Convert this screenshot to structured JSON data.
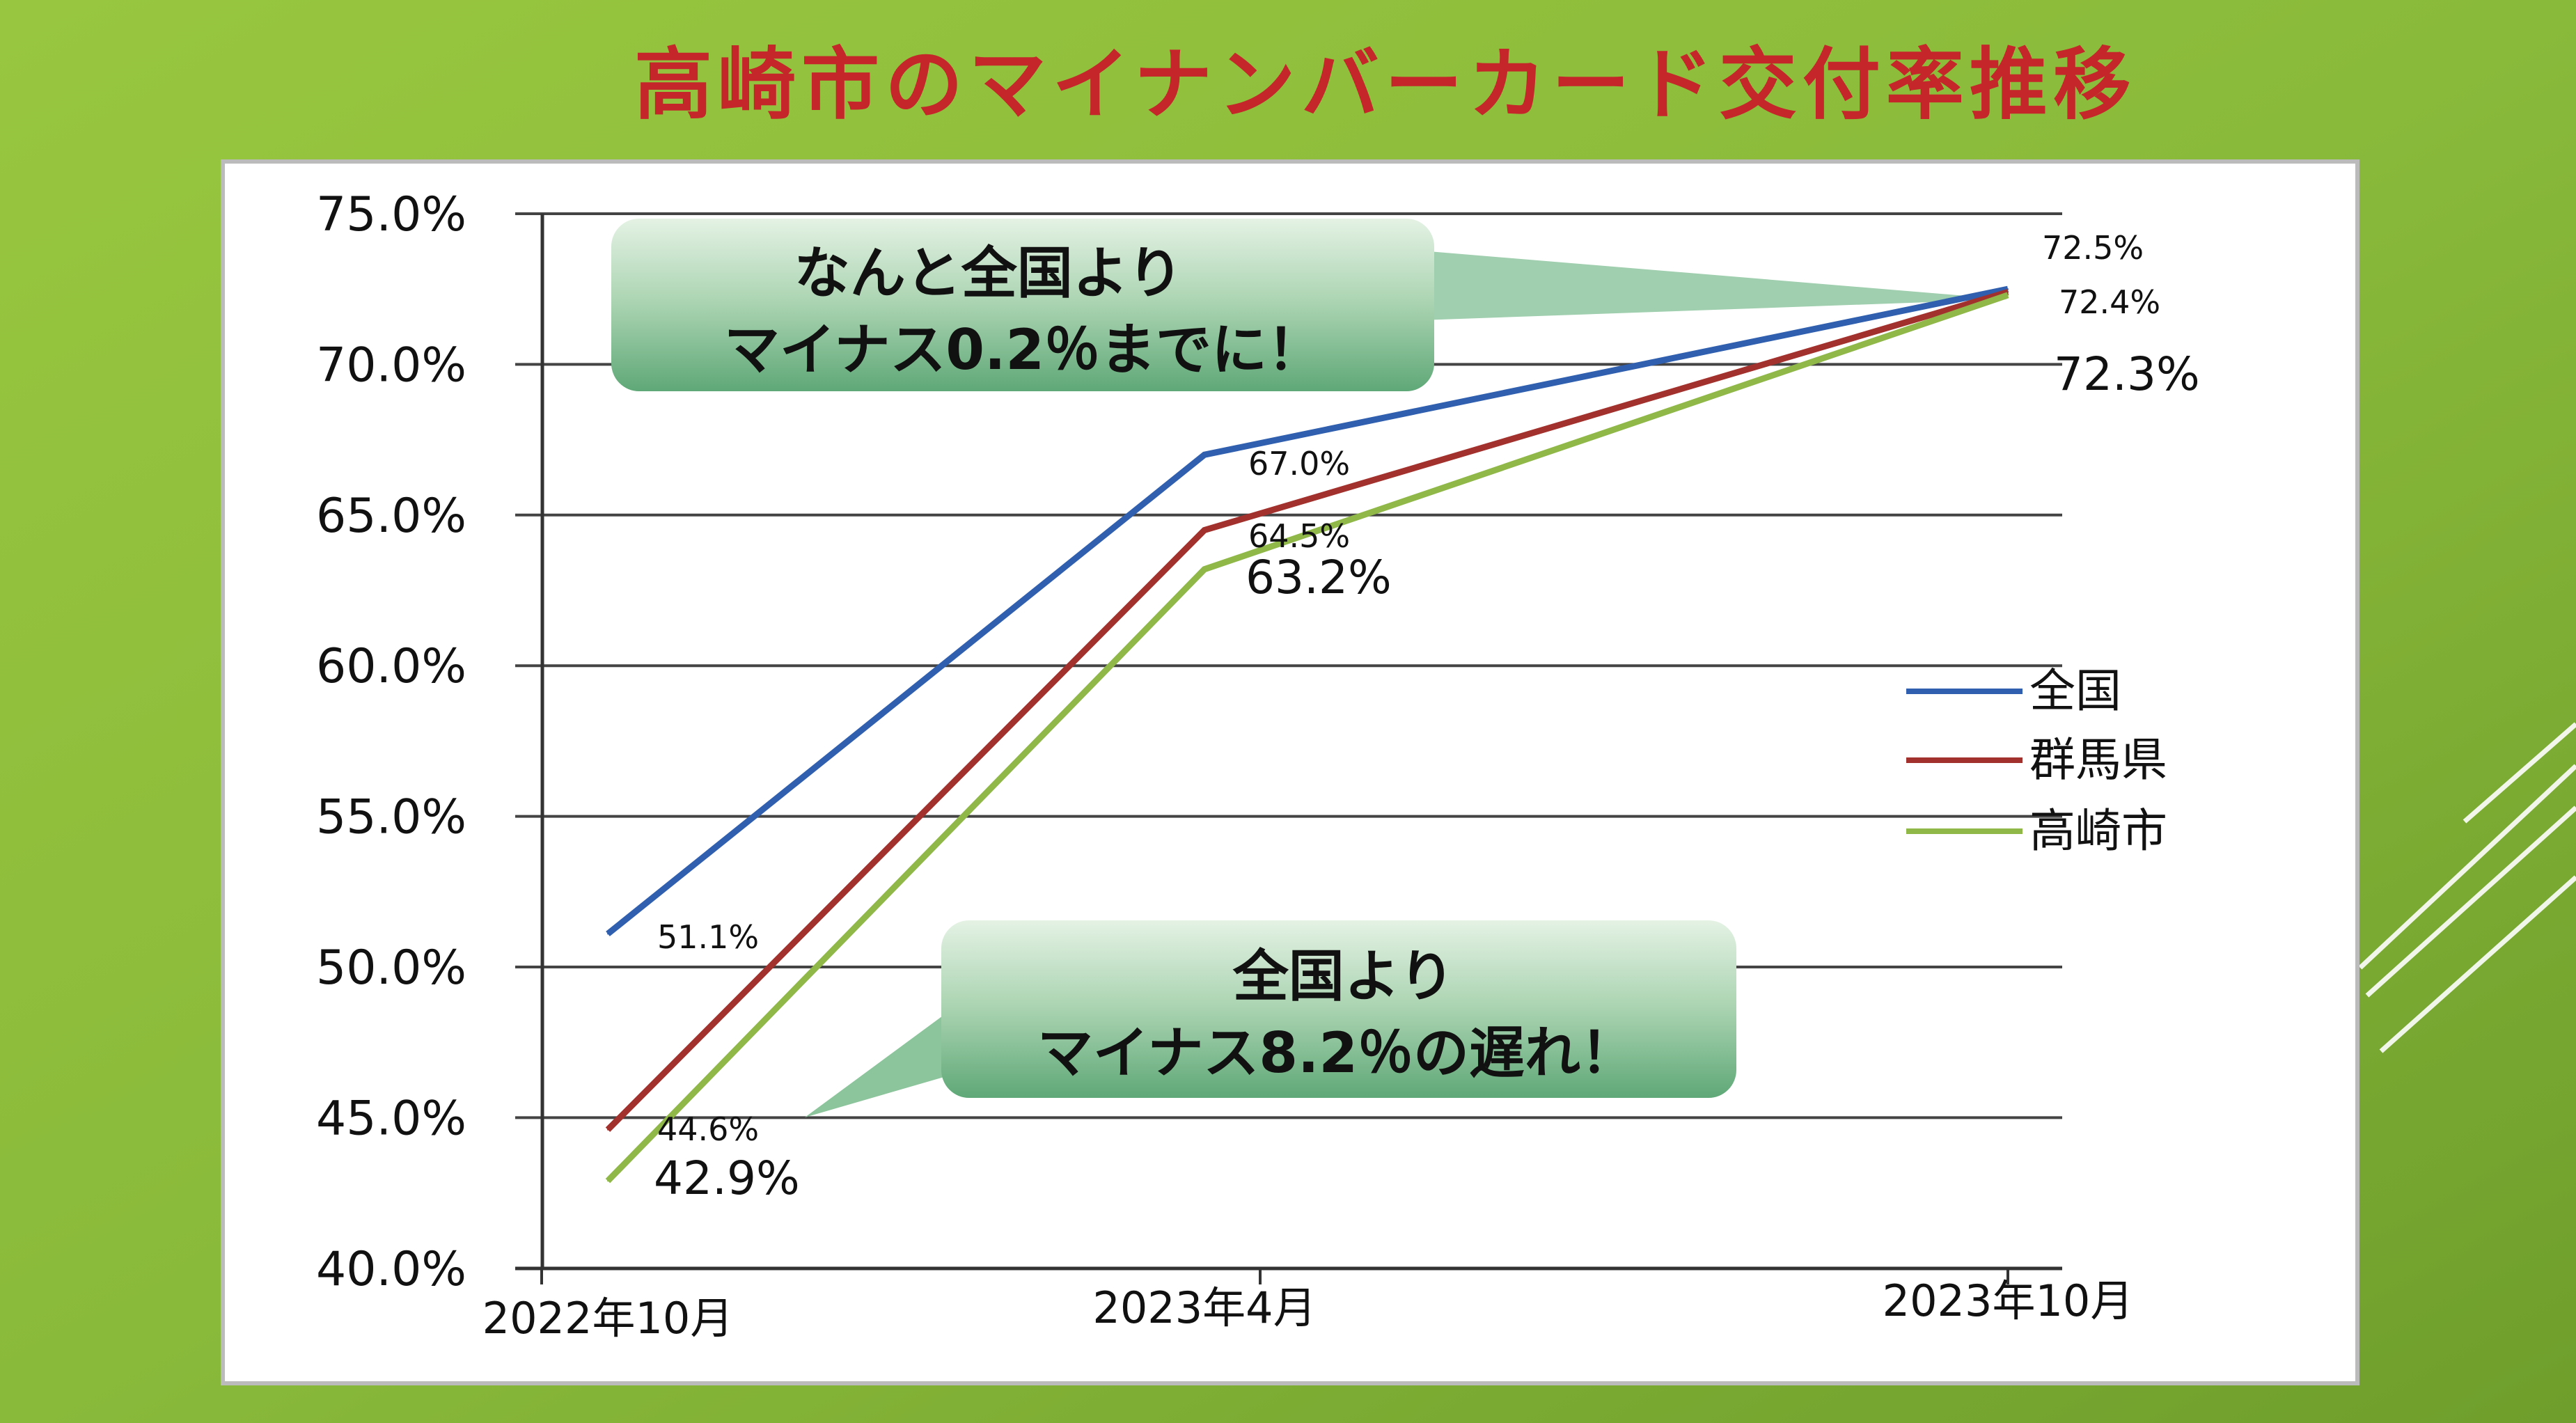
{
  "title": "高崎市のマイナンバーカード交付率推移",
  "colors": {
    "national": "#2f5fae",
    "gunma": "#a2302c",
    "takasaki": "#8fb849",
    "title": "#c4262a",
    "background": "#8dbb3c"
  },
  "chart_data": {
    "type": "line",
    "title": "高崎市のマイナンバーカード交付率推移",
    "categories": [
      "2022年10月",
      "2023年4月",
      "2023年10月"
    ],
    "ylim": [
      40,
      75
    ],
    "yticks": [
      "75.0%",
      "70.0%",
      "65.0%",
      "60.0%",
      "55.0%",
      "50.0%",
      "45.0%",
      "40.0%"
    ],
    "grid": true,
    "legend_position": "right",
    "series": [
      {
        "name": "全国",
        "values": [
          51.1,
          67.0,
          72.5
        ],
        "labels": [
          "51.1%",
          "67.0%",
          "72.5%"
        ]
      },
      {
        "name": "群馬県",
        "values": [
          44.6,
          64.5,
          72.4
        ],
        "labels": [
          "44.6%",
          "64.5%",
          "72.4%"
        ]
      },
      {
        "name": "高崎市",
        "values": [
          42.9,
          63.2,
          72.3
        ],
        "labels": [
          "42.9%",
          "63.2%",
          "72.3%"
        ]
      }
    ],
    "annotations": [
      {
        "line1": "なんと全国より",
        "line2": "マイナス0.2％までに！"
      },
      {
        "line1": "全国より",
        "line2": "マイナス8.2％の遅れ！"
      }
    ]
  }
}
